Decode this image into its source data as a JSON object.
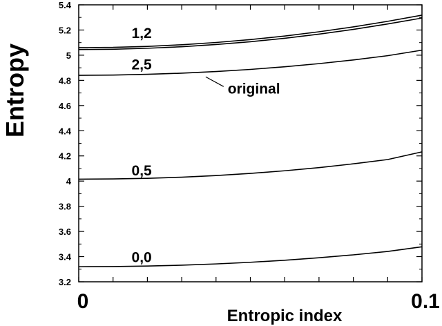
{
  "chart_data": {
    "type": "line",
    "xlabel": "Entropic index",
    "ylabel": "Entropy",
    "xlim": [
      0,
      0.1
    ],
    "ylim": [
      3.2,
      5.4
    ],
    "grid": false,
    "legend": "none",
    "x_tick_labels": [
      "0",
      "0.1"
    ],
    "y_ticks": [
      3.2,
      3.4,
      3.6,
      3.8,
      4.0,
      4.2,
      4.4,
      4.6,
      4.8,
      5.0,
      5.2,
      5.4
    ],
    "y_tick_labels": [
      "3.2",
      "3.4",
      "3.6",
      "3.8",
      "4",
      "4.2",
      "4.4",
      "4.6",
      "4.8",
      "5",
      "5.2",
      "5.4"
    ],
    "x": [
      0,
      0.01,
      0.02,
      0.03,
      0.04,
      0.05,
      0.06,
      0.07,
      0.08,
      0.09,
      0.1
    ],
    "series": [
      {
        "values": [
          5.06,
          5.062,
          5.07,
          5.083,
          5.101,
          5.124,
          5.152,
          5.186,
          5.225,
          5.269,
          5.318
        ]
      },
      {
        "values": [
          5.045,
          5.047,
          5.055,
          5.067,
          5.085,
          5.107,
          5.134,
          5.167,
          5.205,
          5.248,
          5.295
        ]
      },
      {
        "values": [
          4.84,
          4.842,
          4.848,
          4.857,
          4.87,
          4.887,
          4.908,
          4.933,
          4.962,
          4.996,
          5.04
        ]
      },
      {
        "values": [
          4.015,
          4.017,
          4.022,
          4.031,
          4.044,
          4.061,
          4.082,
          4.107,
          4.137,
          4.171,
          4.232
        ]
      },
      {
        "values": [
          3.32,
          3.321,
          3.325,
          3.332,
          3.342,
          3.355,
          3.371,
          3.391,
          3.414,
          3.441,
          3.478
        ]
      }
    ],
    "annotations": [
      {
        "text": "1,2",
        "x": 0.015,
        "y": 5.18
      },
      {
        "text": "2,5",
        "x": 0.015,
        "y": 4.93
      },
      {
        "text": "original",
        "x": 0.043,
        "y": 4.74,
        "arrow_to": [
          0.037,
          4.828
        ]
      },
      {
        "text": "0,5",
        "x": 0.015,
        "y": 4.09
      },
      {
        "text": "0,0",
        "x": 0.015,
        "y": 3.4
      }
    ],
    "tick_marks": {
      "x_minor_count": 10,
      "y_minor_per_major": 1
    }
  }
}
